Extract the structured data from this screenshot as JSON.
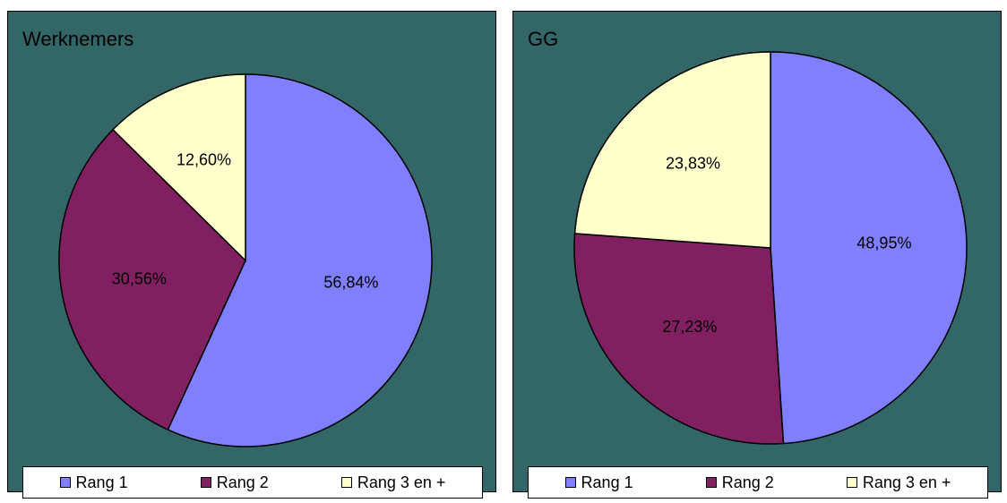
{
  "colors": {
    "background": "#336666",
    "rang1": "#8080FF",
    "rang2": "#802060",
    "rang3": "#FFFFCC"
  },
  "chart_data": [
    {
      "type": "pie",
      "title": "Werknemers",
      "categories": [
        "Rang 1",
        "Rang 2",
        "Rang 3 en +"
      ],
      "values": [
        56.84,
        30.56,
        12.6
      ],
      "data_labels": [
        "56,84%",
        "30,56%",
        "12,60%"
      ],
      "legend_position": "bottom"
    },
    {
      "type": "pie",
      "title": "GG",
      "categories": [
        "Rang 1",
        "Rang 2",
        "Rang 3 en +"
      ],
      "values": [
        48.95,
        27.23,
        23.83
      ],
      "data_labels": [
        "48,95%",
        "27,23%",
        "23,83%"
      ],
      "legend_position": "bottom"
    }
  ]
}
